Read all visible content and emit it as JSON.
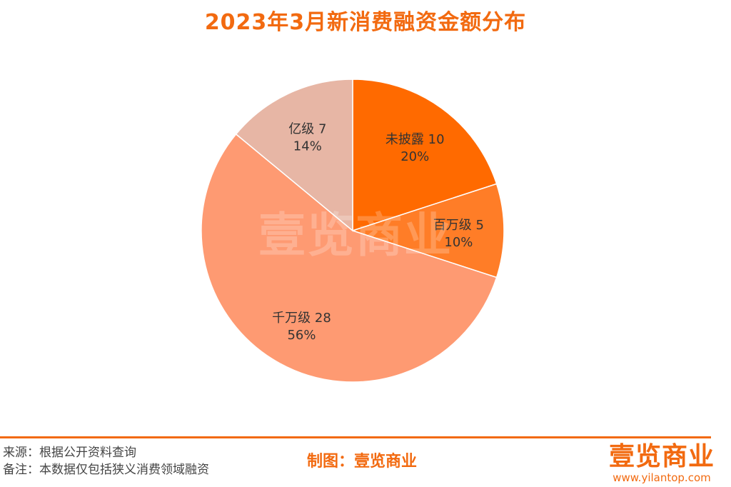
{
  "header": {
    "title": "2023年3月新消费融资金额分布"
  },
  "chart_data": {
    "type": "pie",
    "title": "2023年3月新消费融资金额分布",
    "slices": [
      {
        "label": "未披露",
        "value": 10,
        "percent": "20%",
        "color": "#ff6a00"
      },
      {
        "label": "百万级",
        "value": 5,
        "percent": "10%",
        "color": "#ff7d27"
      },
      {
        "label": "千万级",
        "value": 28,
        "percent": "56%",
        "color": "#fe9a72"
      },
      {
        "label": "亿级",
        "value": 7,
        "percent": "14%",
        "color": "#e7b6a5"
      }
    ],
    "start_angle": "top",
    "direction": "clockwise",
    "legend": "none"
  },
  "watermark": "壹览商业",
  "footer": {
    "source": "来源：根据公开资料查询",
    "note": "备注：本数据仅包括狭义消费领域融资",
    "maker": "制图：壹览商业",
    "logo": "壹览商业",
    "url": "www.yilantop.com"
  }
}
